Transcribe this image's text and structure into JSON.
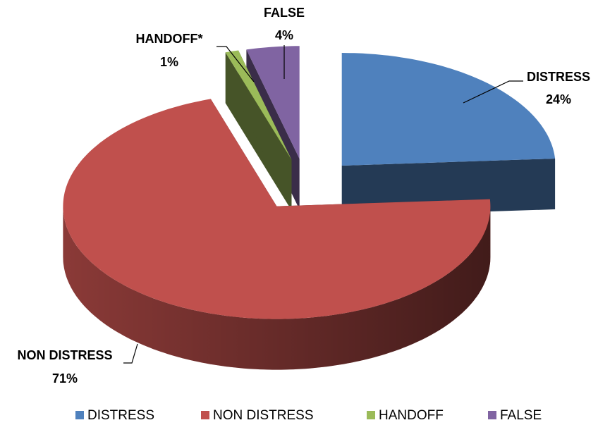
{
  "chart_data": {
    "type": "pie",
    "categories": [
      "DISTRESS",
      "NON DISTRESS",
      "HANDOFF",
      "FALSE"
    ],
    "point_labels": [
      "DISTRESS",
      "NON DISTRESS",
      "HANDOFF*",
      "FALSE"
    ],
    "values": [
      24,
      71,
      1,
      4
    ],
    "value_labels": [
      "24%",
      "71%",
      "1%",
      "4%"
    ],
    "colors": [
      "#4f81bd",
      "#c0504d",
      "#9bbb59",
      "#8064a2"
    ],
    "legend": "bottom"
  }
}
